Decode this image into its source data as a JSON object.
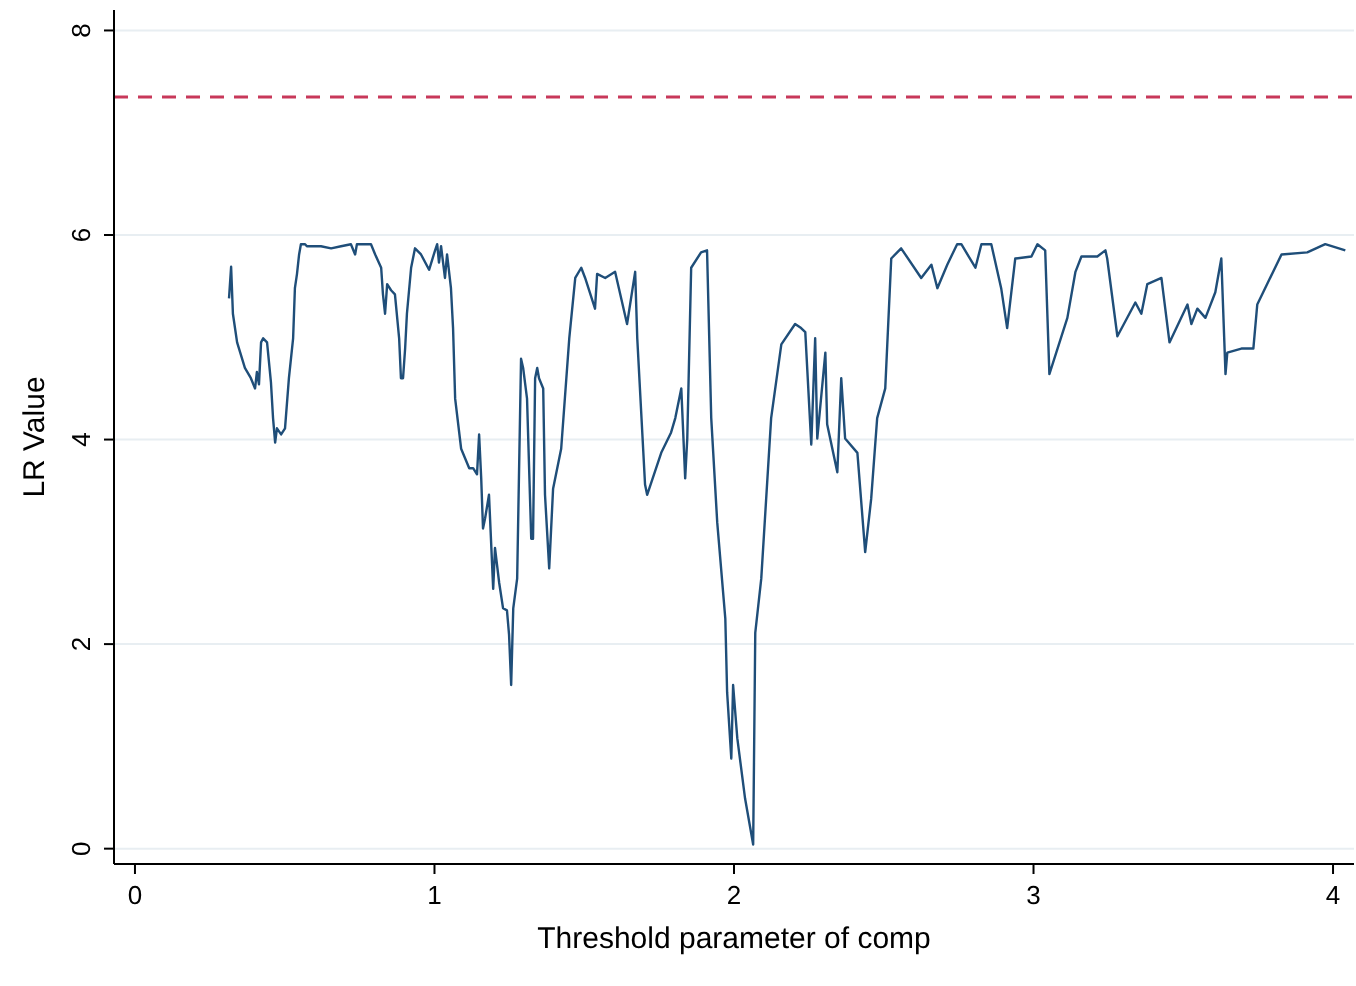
{
  "chart_data": {
    "type": "line",
    "xlabel": "Threshold parameter of comp",
    "ylabel": "LR Value",
    "xlim": [
      -0.07,
      4.07
    ],
    "ylim": [
      -0.15,
      8.2
    ],
    "xticks": [
      0,
      1,
      2,
      3,
      4
    ],
    "yticks": [
      0,
      2,
      4,
      6,
      8
    ],
    "grid": "y",
    "line_style": "solid",
    "marker": "none",
    "ref_lines": [
      {
        "axis": "y",
        "value": 7.35,
        "color": "#c8385a",
        "line_style": "dashed"
      }
    ],
    "series": [
      {
        "color": "#1f4e79",
        "x": [
          0.314,
          0.321,
          0.327,
          0.341,
          0.367,
          0.387,
          0.401,
          0.407,
          0.414,
          0.421,
          0.428,
          0.441,
          0.454,
          0.461,
          0.468,
          0.474,
          0.488,
          0.501,
          0.514,
          0.528,
          0.534,
          0.541,
          0.548,
          0.554,
          0.568,
          0.574,
          0.621,
          0.655,
          0.688,
          0.721,
          0.735,
          0.741,
          0.788,
          0.802,
          0.822,
          0.828,
          0.835,
          0.842,
          0.855,
          0.868,
          0.882,
          0.888,
          0.895,
          0.902,
          0.908,
          0.922,
          0.935,
          0.955,
          0.982,
          1.002,
          1.009,
          1.015,
          1.022,
          1.035,
          1.042,
          1.055,
          1.062,
          1.069,
          1.089,
          1.116,
          1.129,
          1.142,
          1.149,
          1.156,
          1.162,
          1.169,
          1.182,
          1.196,
          1.202,
          1.216,
          1.229,
          1.242,
          1.249,
          1.256,
          1.263,
          1.276,
          1.289,
          1.296,
          1.309,
          1.323,
          1.329,
          1.336,
          1.343,
          1.349,
          1.363,
          1.369,
          1.383,
          1.396,
          1.423,
          1.45,
          1.47,
          1.49,
          1.503,
          1.536,
          1.543,
          1.57,
          1.603,
          1.643,
          1.67,
          1.677,
          1.703,
          1.71,
          1.757,
          1.79,
          1.804,
          1.824,
          1.837,
          1.844,
          1.857,
          1.89,
          1.91,
          1.924,
          1.944,
          1.971,
          1.977,
          1.991,
          1.997,
          2.011,
          2.037,
          2.064,
          2.071,
          2.091,
          2.124,
          2.158,
          2.204,
          2.224,
          2.238,
          2.258,
          2.271,
          2.278,
          2.305,
          2.311,
          2.345,
          2.358,
          2.371,
          2.412,
          2.438,
          2.458,
          2.478,
          2.505,
          2.525,
          2.558,
          2.625,
          2.659,
          2.679,
          2.712,
          2.745,
          2.759,
          2.806,
          2.826,
          2.859,
          2.892,
          2.912,
          2.939,
          2.993,
          3.013,
          3.039,
          3.053,
          3.113,
          3.14,
          3.16,
          3.213,
          3.24,
          3.246,
          3.28,
          3.34,
          3.36,
          3.38,
          3.427,
          3.454,
          3.514,
          3.527,
          3.547,
          3.574,
          3.607,
          3.627,
          3.641,
          3.647,
          3.694,
          3.734,
          3.747,
          3.828,
          3.914,
          3.974,
          4.041
        ],
        "values": [
          5.38,
          5.69,
          5.23,
          4.95,
          4.7,
          4.6,
          4.5,
          4.66,
          4.54,
          4.95,
          4.99,
          4.95,
          4.56,
          4.21,
          3.97,
          4.11,
          4.05,
          4.11,
          4.6,
          4.99,
          5.48,
          5.62,
          5.81,
          5.91,
          5.91,
          5.89,
          5.89,
          5.87,
          5.89,
          5.91,
          5.81,
          5.91,
          5.91,
          5.81,
          5.68,
          5.42,
          5.23,
          5.52,
          5.46,
          5.42,
          4.99,
          4.6,
          4.6,
          4.89,
          5.23,
          5.68,
          5.87,
          5.81,
          5.66,
          5.85,
          5.91,
          5.73,
          5.89,
          5.58,
          5.81,
          5.48,
          5.09,
          4.4,
          3.91,
          3.72,
          3.72,
          3.66,
          4.05,
          3.62,
          3.13,
          3.23,
          3.46,
          2.54,
          2.94,
          2.6,
          2.35,
          2.33,
          2.09,
          1.6,
          2.35,
          2.64,
          4.79,
          4.7,
          4.4,
          3.03,
          3.03,
          4.6,
          4.7,
          4.6,
          4.5,
          3.46,
          2.74,
          3.52,
          3.91,
          4.99,
          5.58,
          5.68,
          5.58,
          5.28,
          5.62,
          5.58,
          5.64,
          5.13,
          5.64,
          4.99,
          3.56,
          3.46,
          3.87,
          4.07,
          4.21,
          4.5,
          3.62,
          4.01,
          5.68,
          5.83,
          5.85,
          4.21,
          3.19,
          2.25,
          1.53,
          0.88,
          1.6,
          1.08,
          0.49,
          0.04,
          2.11,
          2.64,
          4.21,
          4.93,
          5.13,
          5.09,
          5.05,
          3.95,
          4.99,
          4.01,
          4.85,
          4.15,
          3.68,
          4.6,
          4.01,
          3.87,
          2.9,
          3.42,
          4.21,
          4.5,
          5.77,
          5.87,
          5.58,
          5.71,
          5.48,
          5.71,
          5.91,
          5.91,
          5.68,
          5.91,
          5.91,
          5.48,
          5.09,
          5.77,
          5.79,
          5.91,
          5.85,
          4.64,
          5.19,
          5.64,
          5.79,
          5.79,
          5.85,
          5.77,
          5.01,
          5.34,
          5.23,
          5.52,
          5.58,
          4.95,
          5.32,
          5.13,
          5.28,
          5.19,
          5.44,
          5.77,
          4.64,
          4.85,
          4.89,
          4.89,
          5.32,
          5.81,
          5.83,
          5.91,
          5.85
        ]
      }
    ]
  }
}
